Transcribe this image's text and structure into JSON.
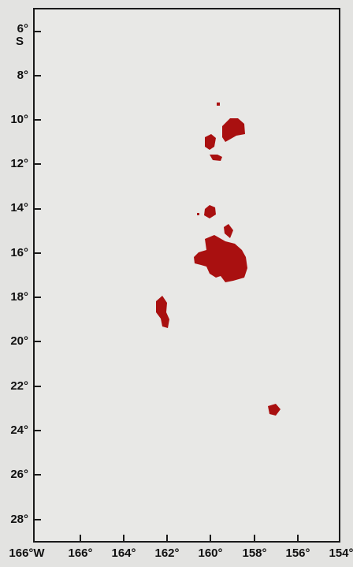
{
  "map": {
    "latitude_labels": [
      "6°",
      "8°",
      "10°",
      "12°",
      "14°",
      "16°",
      "18°",
      "20°",
      "22°",
      "24°",
      "26°",
      "28°"
    ],
    "latitude_hemisphere": "S",
    "longitude_labels": [
      "166°W",
      "166°",
      "164°",
      "162°",
      "160°",
      "158°",
      "156°",
      "154°"
    ],
    "patch_color": "#a91010",
    "background_color": "#e8e8e6"
  }
}
